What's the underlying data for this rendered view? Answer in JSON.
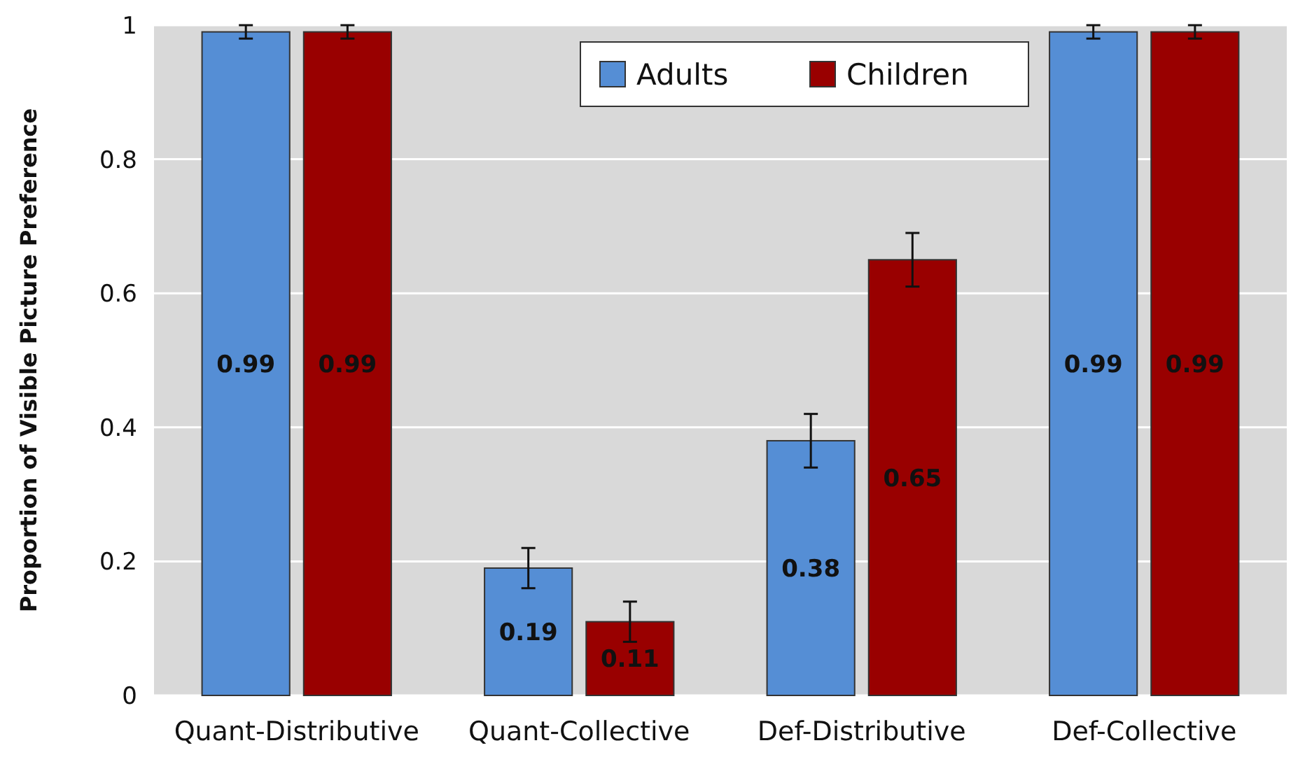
{
  "chart_data": {
    "type": "bar",
    "ylabel": "Proportion of Visible Picture Preference",
    "categories": [
      "Quant-Distributive",
      "Quant-Collective",
      "Def-Distributive",
      "Def-Collective"
    ],
    "series": [
      {
        "name": "Adults",
        "color": "#558ed5",
        "values": [
          0.99,
          0.19,
          0.38,
          0.99
        ],
        "errors": [
          0.01,
          0.03,
          0.04,
          0.01
        ]
      },
      {
        "name": "Children",
        "color": "#990000",
        "values": [
          0.99,
          0.11,
          0.65,
          0.99
        ],
        "errors": [
          0.01,
          0.03,
          0.04,
          0.01
        ]
      }
    ],
    "ylim": [
      0,
      1
    ],
    "yticks": [
      0,
      0.2,
      0.4,
      0.6,
      0.8,
      1
    ],
    "grid": "y",
    "legend": "top",
    "data_labels": true
  }
}
